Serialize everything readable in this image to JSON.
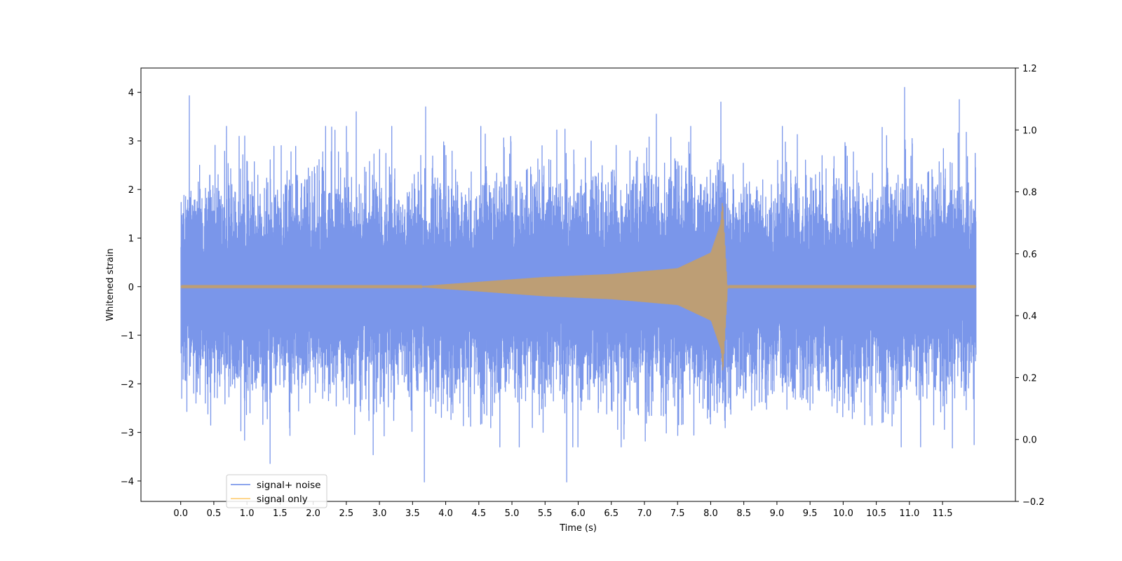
{
  "chart_data": {
    "type": "line",
    "xlabel": "Time (s)",
    "ylabel": "Whitened strain",
    "xlim": [
      -0.6,
      12.6
    ],
    "ylim": [
      -4.42,
      4.5
    ],
    "y2lim": [
      -0.2,
      1.2
    ],
    "x_ticks": [
      0.0,
      0.5,
      1.0,
      1.5,
      2.0,
      2.5,
      3.0,
      3.5,
      4.0,
      4.5,
      5.0,
      5.5,
      6.0,
      6.5,
      7.0,
      7.5,
      8.0,
      8.5,
      9.0,
      9.5,
      10.0,
      10.5,
      11.0,
      11.5
    ],
    "x_tick_labels": [
      "0.0",
      "0.5",
      "1.0",
      "1.5",
      "2.0",
      "2.5",
      "3.0",
      "3.5",
      "4.0",
      "4.5",
      "5.0",
      "5.5",
      "6.0",
      "6.5",
      "7.0",
      "7.5",
      "8.0",
      "8.5",
      "9.0",
      "9.5",
      "10.0",
      "10.5",
      "11.0",
      "11.5"
    ],
    "y_ticks": [
      -4,
      -3,
      -2,
      -1,
      0,
      1,
      2,
      3,
      4
    ],
    "y_tick_labels": [
      "−4",
      "−3",
      "−2",
      "−1",
      "0",
      "1",
      "2",
      "3",
      "4"
    ],
    "y2_ticks": [
      -0.2,
      0.0,
      0.2,
      0.4,
      0.6,
      0.8,
      1.0,
      1.2
    ],
    "y2_tick_labels": [
      "−0.2",
      "0.0",
      "0.2",
      "0.4",
      "0.6",
      "0.8",
      "1.0",
      "1.2"
    ],
    "grid": false,
    "legend_placement": "lower-left",
    "series": [
      {
        "name": "signal+ noise",
        "color": "#4169e1",
        "opacity": 0.7,
        "x_range": [
          0.0,
          12.0
        ],
        "typical_envelope": [
          -1.9,
          1.9
        ],
        "peaks": [
          {
            "x": 0.13,
            "y": 3.93
          },
          {
            "x": 1.35,
            "y": -3.64
          },
          {
            "x": 2.65,
            "y": 3.6
          },
          {
            "x": 3.68,
            "y": -4.02
          },
          {
            "x": 3.7,
            "y": 3.7
          },
          {
            "x": 5.83,
            "y": -4.02
          },
          {
            "x": 7.18,
            "y": 3.55
          },
          {
            "x": 8.15,
            "y": 3.8
          },
          {
            "x": 10.93,
            "y": 4.1
          },
          {
            "x": 11.75,
            "y": 3.85
          },
          {
            "x": 11.65,
            "y": -3.32
          },
          {
            "x": 2.9,
            "y": -3.46
          }
        ]
      },
      {
        "name": "signal only",
        "color": "#ffa500",
        "opacity": 0.5,
        "x_range": [
          0.0,
          12.0
        ],
        "chirp_start": 3.5,
        "merger_time": 8.18,
        "peak_amplitude": 1.8,
        "amplitude_at": [
          {
            "x": 3.5,
            "y": 0.0
          },
          {
            "x": 4.5,
            "y": 0.1
          },
          {
            "x": 5.5,
            "y": 0.2
          },
          {
            "x": 6.5,
            "y": 0.26
          },
          {
            "x": 7.5,
            "y": 0.38
          },
          {
            "x": 8.0,
            "y": 0.7
          },
          {
            "x": 8.15,
            "y": 1.3
          },
          {
            "x": 8.18,
            "y": 1.8
          },
          {
            "x": 8.25,
            "y": 0.03
          }
        ]
      }
    ]
  }
}
